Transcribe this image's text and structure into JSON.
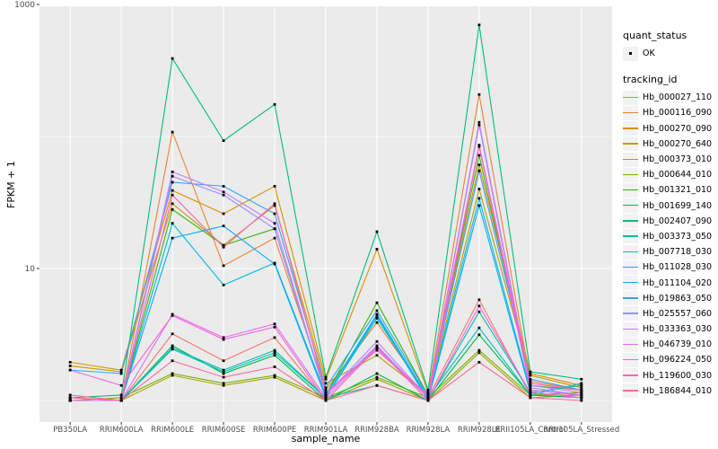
{
  "chart_data": {
    "type": "line",
    "title": "",
    "xlabel": "sample_name",
    "ylabel": "FPKM + 1",
    "y_scale": "log10",
    "y_ticks": [
      {
        "value": 10,
        "label": "10"
      },
      {
        "value": 1000,
        "label": "1000"
      }
    ],
    "y_minor": [
      1,
      100
    ],
    "ylim": [
      0.7,
      950
    ],
    "grid": true,
    "legend_position": "right",
    "point_shape": "small-black-square",
    "categories": [
      "PB350LA",
      "RRIM600LA",
      "RRIM600LE",
      "RRIM600SE",
      "RRIM600PE",
      "RRIM901LA",
      "RRIM928BA",
      "RRIM928LA",
      "RRIM928LE",
      "RRII105LA_Control",
      "RRII105LA_Stressed"
    ],
    "legend": {
      "quant_status": {
        "title": "quant_status",
        "items": [
          {
            "label": "OK"
          }
        ]
      },
      "tracking_id": {
        "title": "tracking_id"
      }
    },
    "series": [
      {
        "name": "Hb_000027_110",
        "color": "#F8766D",
        "values": [
          1.05,
          1.0,
          3.2,
          2.0,
          3.0,
          1.0,
          2.5,
          1.05,
          5.8,
          1.1,
          1.1
        ]
      },
      {
        "name": "Hb_000116_090",
        "color": "#EA8331",
        "values": [
          1.0,
          1.0,
          108,
          10.5,
          17,
          1.2,
          3.9,
          1.1,
          208,
          1.4,
          1.2
        ]
      },
      {
        "name": "Hb_000270_090",
        "color": "#D89000",
        "values": [
          1.95,
          1.7,
          39,
          26,
          42,
          1.45,
          14,
          1.15,
          61,
          1.6,
          1.3
        ]
      },
      {
        "name": "Hb_000270_640",
        "color": "#C09B00",
        "values": [
          1.83,
          1.65,
          31,
          15,
          30,
          1.35,
          2.2,
          1.1,
          40,
          1.55,
          1.25
        ]
      },
      {
        "name": "Hb_000373_010",
        "color": "#A3A500",
        "values": [
          1.0,
          1.0,
          1.55,
          1.3,
          1.5,
          1.0,
          1.45,
          1.0,
          2.3,
          1.05,
          1.1
        ]
      },
      {
        "name": "Hb_000644_010",
        "color": "#7CAE00",
        "values": [
          1.0,
          1.05,
          1.6,
          1.35,
          1.55,
          1.05,
          1.5,
          1.05,
          2.4,
          1.1,
          1.15
        ]
      },
      {
        "name": "Hb_001321_010",
        "color": "#39B600",
        "values": [
          1.0,
          1.0,
          28,
          15,
          20,
          1.1,
          5.5,
          1.1,
          72,
          1.3,
          1.2
        ]
      },
      {
        "name": "Hb_001699_140",
        "color": "#00BB4E",
        "values": [
          1.0,
          1.0,
          2.6,
          1.6,
          2.2,
          1.0,
          1.6,
          1.0,
          3.15,
          1.1,
          1.05
        ]
      },
      {
        "name": "Hb_002407_090",
        "color": "#00BF7D",
        "values": [
          1.05,
          1.1,
          390,
          93,
          175,
          1.5,
          19,
          1.2,
          700,
          1.65,
          1.45
        ]
      },
      {
        "name": "Hb_003373_050",
        "color": "#00C1A3",
        "values": [
          1.0,
          1.0,
          2.5,
          1.7,
          2.4,
          1.05,
          1.3,
          1.0,
          4.7,
          1.15,
          1.3
        ]
      },
      {
        "name": "Hb_007718_030",
        "color": "#00BFC4",
        "values": [
          1.0,
          1.0,
          2.45,
          1.65,
          2.3,
          1.05,
          4.2,
          1.05,
          3.55,
          1.1,
          1.35
        ]
      },
      {
        "name": "Hb_011028_030",
        "color": "#00BAE0",
        "values": [
          1.0,
          1.0,
          22,
          7.5,
          11,
          1.1,
          4.5,
          1.05,
          34,
          1.2,
          1.1
        ]
      },
      {
        "name": "Hb_011104_020",
        "color": "#00B0F6",
        "values": [
          1.0,
          1.0,
          17,
          21,
          10.8,
          1.05,
          4.4,
          1.0,
          30,
          1.15,
          1.05
        ]
      },
      {
        "name": "Hb_019863_050",
        "color": "#35A2FF",
        "values": [
          1.7,
          1.6,
          45,
          42,
          26,
          1.25,
          4.8,
          1.1,
          55,
          1.45,
          1.2
        ]
      },
      {
        "name": "Hb_025557_060",
        "color": "#9590FF",
        "values": [
          1.0,
          1.0,
          50,
          36,
          20,
          1.1,
          2.6,
          1.05,
          122,
          1.25,
          1.1
        ]
      },
      {
        "name": "Hb_033363_030",
        "color": "#C77CFF",
        "values": [
          1.0,
          1.0,
          54,
          38,
          22,
          1.1,
          2.8,
          1.05,
          128,
          1.3,
          1.15
        ]
      },
      {
        "name": "Hb_046739_010",
        "color": "#E76BF3",
        "values": [
          1.0,
          1.0,
          4.5,
          3.0,
          3.8,
          1.05,
          2.55,
          1.0,
          84,
          1.2,
          1.1
        ]
      },
      {
        "name": "Hb_096224_050",
        "color": "#FA62DB",
        "values": [
          1.7,
          1.3,
          4.4,
          2.9,
          3.6,
          1.0,
          2.5,
          1.0,
          5.2,
          1.15,
          1.05
        ]
      },
      {
        "name": "Hb_119600_030",
        "color": "#FF62BC",
        "values": [
          1.05,
          1.0,
          36,
          14.5,
          31,
          1.15,
          2.4,
          1.1,
          86,
          1.35,
          1.2
        ]
      },
      {
        "name": "Hb_186844_010",
        "color": "#FF6A98",
        "values": [
          1.1,
          1.0,
          2.0,
          1.5,
          1.8,
          1.0,
          1.3,
          1.0,
          1.95,
          1.05,
          1.0
        ]
      }
    ]
  },
  "style": {
    "panel_bg": "#EBEBEB",
    "grid_color": "#FFFFFF",
    "tick_text_color": "#4D4D4D",
    "point_color": "#000000",
    "legend_key_bg": "#F2F2F2"
  }
}
